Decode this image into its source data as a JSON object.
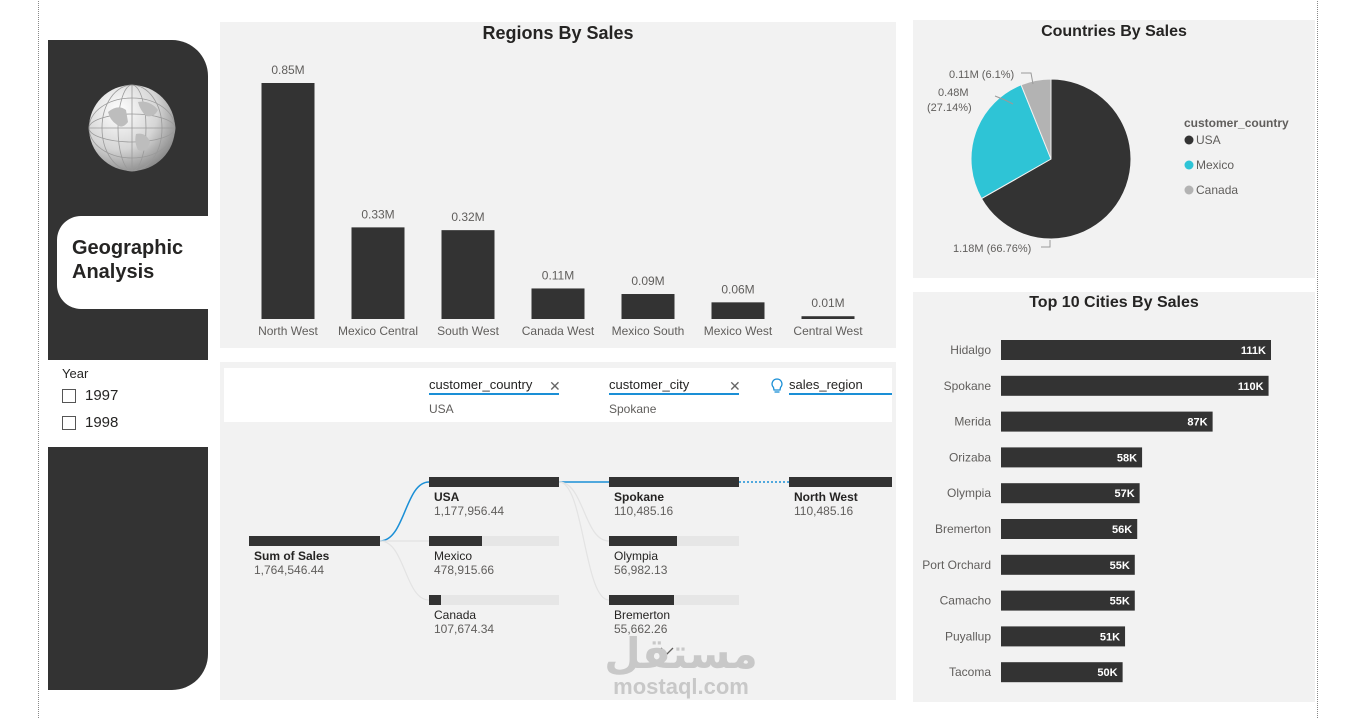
{
  "sidebar": {
    "title_line1": "Geographic",
    "title_line2": "Analysis",
    "year_label": "Year",
    "years": [
      "1997",
      "1998"
    ]
  },
  "charts": {
    "regions": {
      "type": "bar",
      "title": "Regions By Sales",
      "categories": [
        "North West",
        "Mexico Central",
        "South West",
        "Canada West",
        "Mexico South",
        "Mexico West",
        "Central West"
      ],
      "values": [
        0.85,
        0.33,
        0.32,
        0.11,
        0.09,
        0.06,
        0.01
      ],
      "labels": [
        "0.85M",
        "0.33M",
        "0.32M",
        "0.11M",
        "0.09M",
        "0.06M",
        "0.01M"
      ],
      "color": "#333333"
    },
    "countries": {
      "type": "pie",
      "title": "Countries By Sales",
      "legend_title": "customer_country",
      "slices": [
        {
          "name": "USA",
          "value": 66.76,
          "label": "1.18M (66.76%)",
          "color": "#333333"
        },
        {
          "name": "Mexico",
          "value": 27.14,
          "label_line1": "0.48M",
          "label_line2": "(27.14%)",
          "color": "#2ec4d6"
        },
        {
          "name": "Canada",
          "value": 6.1,
          "label": "0.11M (6.1%)",
          "color": "#b3b3b3"
        }
      ],
      "legend_placement": "right"
    },
    "cities": {
      "type": "bar",
      "title": "Top 10 Cities By Sales",
      "categories": [
        "Hidalgo",
        "Spokane",
        "Merida",
        "Orizaba",
        "Olympia",
        "Bremerton",
        "Port Orchard",
        "Camacho",
        "Puyallup",
        "Tacoma"
      ],
      "values": [
        111,
        110,
        87,
        58,
        57,
        56,
        55,
        55,
        51,
        50
      ],
      "labels": [
        "111K",
        "110K",
        "87K",
        "58K",
        "57K",
        "56K",
        "55K",
        "55K",
        "51K",
        "50K"
      ],
      "color": "#333333"
    }
  },
  "tree": {
    "fields": [
      {
        "name": "customer_country",
        "value": "USA"
      },
      {
        "name": "customer_city",
        "value": "Spokane"
      },
      {
        "name": "sales_region",
        "value": ""
      }
    ],
    "root": {
      "name": "Sum of Sales",
      "value": "1,764,546.44"
    },
    "level1": [
      {
        "name": "USA",
        "value": "1,177,956.44",
        "fraction": 1.0
      },
      {
        "name": "Mexico",
        "value": "478,915.66",
        "fraction": 0.41
      },
      {
        "name": "Canada",
        "value": "107,674.34",
        "fraction": 0.09
      }
    ],
    "level2": [
      {
        "name": "Spokane",
        "value": "110,485.16",
        "fraction": 1.0
      },
      {
        "name": "Olympia",
        "value": "56,982.13",
        "fraction": 0.52
      },
      {
        "name": "Bremerton",
        "value": "55,662.26",
        "fraction": 0.5
      }
    ],
    "level3": [
      {
        "name": "North West",
        "value": "110,485.16",
        "fraction": 1.0
      }
    ]
  },
  "watermark": {
    "arabic": "مستقل",
    "latin": "mostaql.com"
  },
  "chart_data": [
    {
      "type": "bar",
      "title": "Regions By Sales",
      "categories": [
        "North West",
        "Mexico Central",
        "South West",
        "Canada West",
        "Mexico South",
        "Mexico West",
        "Central West"
      ],
      "values": [
        0.85,
        0.33,
        0.32,
        0.11,
        0.09,
        0.06,
        0.01
      ]
    },
    {
      "type": "pie",
      "title": "Countries By Sales",
      "categories": [
        "USA",
        "Mexico",
        "Canada"
      ],
      "values": [
        66.76,
        27.14,
        6.1
      ]
    },
    {
      "type": "bar",
      "title": "Top 10 Cities By Sales",
      "categories": [
        "Hidalgo",
        "Spokane",
        "Merida",
        "Orizaba",
        "Olympia",
        "Bremerton",
        "Port Orchard",
        "Camacho",
        "Puyallup",
        "Tacoma"
      ],
      "values": [
        111,
        110,
        87,
        58,
        57,
        56,
        55,
        55,
        51,
        50
      ]
    }
  ]
}
